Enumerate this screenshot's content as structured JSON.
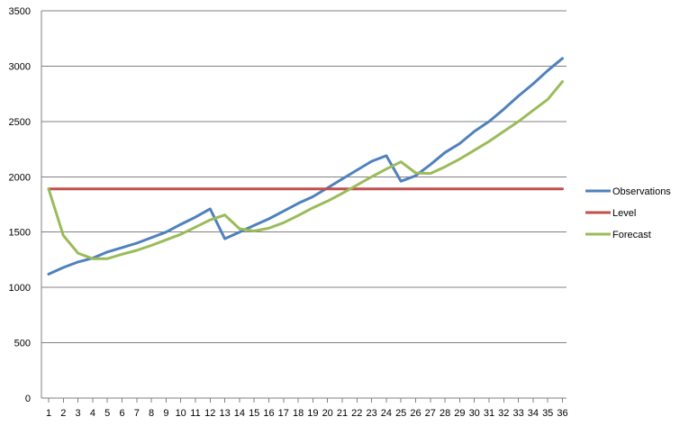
{
  "chart_data": {
    "type": "line",
    "title": "",
    "xlabel": "",
    "ylabel": "",
    "x": [
      1,
      2,
      3,
      4,
      5,
      6,
      7,
      8,
      9,
      10,
      11,
      12,
      13,
      14,
      15,
      16,
      17,
      18,
      19,
      20,
      21,
      22,
      23,
      24,
      25,
      26,
      27,
      28,
      29,
      30,
      31,
      32,
      33,
      34,
      35,
      36
    ],
    "ylim": [
      0,
      3500
    ],
    "yticks": [
      0,
      500,
      1000,
      1500,
      2000,
      2500,
      3000,
      3500
    ],
    "grid": true,
    "legend_position": "right",
    "series": [
      {
        "name": "Observations",
        "color": "#4f81bd",
        "values": [
          1120,
          1180,
          1230,
          1265,
          1320,
          1360,
          1400,
          1450,
          1500,
          1570,
          1635,
          1710,
          1440,
          1500,
          1560,
          1620,
          1690,
          1760,
          1820,
          1900,
          1980,
          2060,
          2140,
          2190,
          1960,
          2010,
          2110,
          2220,
          2300,
          2410,
          2500,
          2610,
          2730,
          2840,
          2960,
          3070
        ]
      },
      {
        "name": "Level",
        "color": "#c0504d",
        "values": [
          1890,
          1890,
          1890,
          1890,
          1890,
          1890,
          1890,
          1890,
          1890,
          1890,
          1890,
          1890,
          1890,
          1890,
          1890,
          1890,
          1890,
          1890,
          1890,
          1890,
          1890,
          1890,
          1890,
          1890,
          1890,
          1890,
          1890,
          1890,
          1890,
          1890,
          1890,
          1890,
          1890,
          1890,
          1890,
          1890
        ]
      },
      {
        "name": "Forecast",
        "color": "#9bbb59",
        "values": [
          1890,
          1470,
          1310,
          1260,
          1260,
          1300,
          1335,
          1380,
          1430,
          1480,
          1545,
          1610,
          1655,
          1530,
          1510,
          1535,
          1585,
          1650,
          1720,
          1780,
          1850,
          1925,
          2000,
          2070,
          2135,
          2035,
          2030,
          2090,
          2160,
          2240,
          2320,
          2410,
          2500,
          2600,
          2700,
          2860
        ]
      }
    ]
  }
}
